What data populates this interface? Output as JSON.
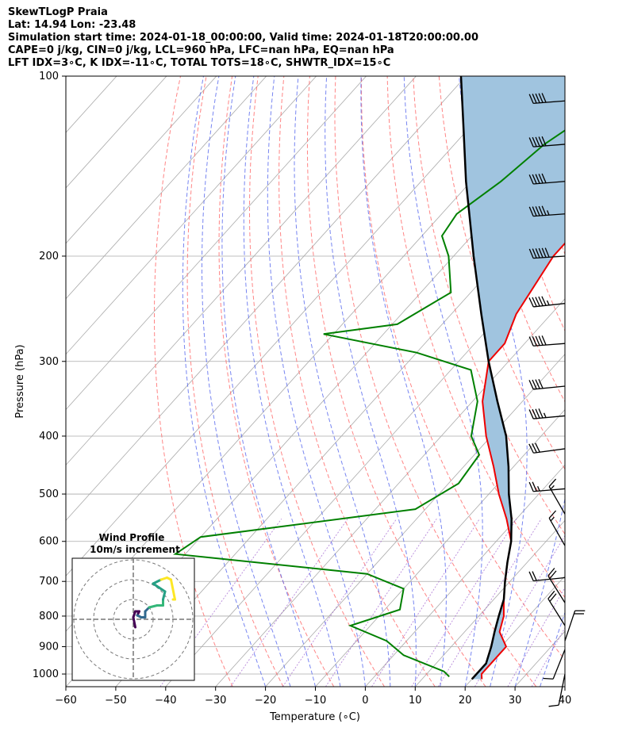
{
  "header": {
    "line1": "SkewTLogP Praia",
    "line2": "Lat: 14.94   Lon: -23.48",
    "line3": "Simulation start time: 2024-01-18_00:00:00, Valid time: 2024-01-18T20:00:00.00",
    "line4": "CAPE=0 j/kg, CIN=0 j/kg, LCL=960 hPa, LFC=nan hPa, EQ=nan hPa",
    "line5": "LFT IDX=3∘C, K IDX=-11∘C, TOTAL TOTS=18∘C, SHWTR_IDX=15∘C"
  },
  "chart_data": {
    "type": "line",
    "subtype": "skew-t log-p",
    "xlabel": "Temperature (∘C)",
    "ylabel": "Pressure (hPa)",
    "xlim": [
      -60,
      40
    ],
    "ylim": [
      1050,
      100
    ],
    "y_scale": "log",
    "grid": true,
    "x_ticks": [
      "−60",
      "−50",
      "−40",
      "−30",
      "−20",
      "−10",
      "0",
      "10",
      "20",
      "30",
      "40"
    ],
    "y_ticks": [
      "100",
      "200",
      "300",
      "400",
      "500",
      "600",
      "700",
      "800",
      "900",
      "1000"
    ],
    "colors": {
      "temperature": "#ee0000",
      "dewpoint": "#008000",
      "parcel": "#000000",
      "shade": "#a0c4df",
      "dry_adiabat": "#ff6666",
      "moist_adiabat": "#5566ee",
      "mixing_ratio": "#9955cc",
      "isotherm": "#aaaaaa",
      "hodo_colors": [
        "#440154",
        "#31688e",
        "#35b779",
        "#26a085",
        "#fde725"
      ]
    },
    "series": [
      {
        "key": "temperature",
        "points": [
          [
            100,
            -35
          ],
          [
            120,
            -35
          ],
          [
            150,
            -38
          ],
          [
            180,
            -40
          ],
          [
            200,
            -40
          ],
          [
            250,
            -37
          ],
          [
            280,
            -34
          ],
          [
            300,
            -34
          ],
          [
            350,
            -28
          ],
          [
            400,
            -21
          ],
          [
            450,
            -14
          ],
          [
            500,
            -8
          ],
          [
            550,
            -2
          ],
          [
            600,
            3
          ],
          [
            650,
            6
          ],
          [
            700,
            9
          ],
          [
            750,
            12
          ],
          [
            800,
            15
          ],
          [
            850,
            17
          ],
          [
            900,
            21
          ],
          [
            950,
            21
          ],
          [
            1000,
            21
          ],
          [
            1020,
            22
          ]
        ]
      },
      {
        "key": "dewpoint",
        "points": [
          [
            100,
            -54
          ],
          [
            130,
            -62
          ],
          [
            150,
            -64
          ],
          [
            170,
            -67
          ],
          [
            185,
            -66
          ],
          [
            200,
            -61
          ],
          [
            230,
            -54
          ],
          [
            260,
            -59
          ],
          [
            270,
            -72
          ],
          [
            290,
            -50
          ],
          [
            310,
            -36
          ],
          [
            350,
            -29
          ],
          [
            400,
            -24
          ],
          [
            430,
            -19
          ],
          [
            480,
            -18
          ],
          [
            530,
            -22
          ],
          [
            590,
            -60
          ],
          [
            630,
            -62
          ],
          [
            680,
            -20
          ],
          [
            720,
            -10
          ],
          [
            780,
            -7
          ],
          [
            830,
            -14
          ],
          [
            880,
            -4
          ],
          [
            930,
            2
          ],
          [
            990,
            13
          ],
          [
            1010,
            15
          ]
        ]
      },
      {
        "key": "parcel",
        "points": [
          [
            1020,
            20
          ],
          [
            1000,
            20
          ],
          [
            960,
            20
          ],
          [
            900,
            18
          ],
          [
            850,
            16
          ],
          [
            800,
            14
          ],
          [
            750,
            12
          ],
          [
            700,
            9
          ],
          [
            650,
            6
          ],
          [
            600,
            3
          ],
          [
            550,
            -1
          ],
          [
            500,
            -6
          ],
          [
            450,
            -11
          ],
          [
            400,
            -17
          ],
          [
            350,
            -25
          ],
          [
            300,
            -34
          ],
          [
            250,
            -44
          ],
          [
            200,
            -56
          ],
          [
            150,
            -71
          ],
          [
            120,
            -82
          ],
          [
            100,
            -91
          ]
        ]
      }
    ],
    "wind_barbs": [
      {
        "p": 110,
        "u": -25,
        "v": -2
      },
      {
        "p": 130,
        "u": -25,
        "v": -2
      },
      {
        "p": 150,
        "u": -25,
        "v": -2
      },
      {
        "p": 170,
        "u": -28,
        "v": -2
      },
      {
        "p": 200,
        "u": -30,
        "v": -2
      },
      {
        "p": 240,
        "u": -28,
        "v": -3
      },
      {
        "p": 280,
        "u": -26,
        "v": -2
      },
      {
        "p": 330,
        "u": -20,
        "v": -2
      },
      {
        "p": 370,
        "u": -22,
        "v": -2
      },
      {
        "p": 420,
        "u": -15,
        "v": -2
      },
      {
        "p": 490,
        "u": -12,
        "v": -1
      },
      {
        "p": 540,
        "u": -4,
        "v": 7
      },
      {
        "p": 610,
        "u": -4,
        "v": 7
      },
      {
        "p": 690,
        "u": -10,
        "v": -1
      },
      {
        "p": 760,
        "u": -5,
        "v": 8
      },
      {
        "p": 830,
        "u": -5,
        "v": 8
      },
      {
        "p": 880,
        "u": 3,
        "v": 9
      },
      {
        "p": 910,
        "u": -2,
        "v": -5
      },
      {
        "p": 1000,
        "u": -1,
        "v": -5
      }
    ],
    "hodograph": {
      "title": "Wind Profile",
      "subtitle": "10m/s increment",
      "points": [
        [
          1,
          -4
        ],
        [
          0,
          1
        ],
        [
          1,
          4
        ],
        [
          3,
          4
        ],
        [
          2,
          2
        ],
        [
          4,
          1
        ],
        [
          6,
          1
        ],
        [
          6,
          4
        ],
        [
          8,
          6
        ],
        [
          12,
          7
        ],
        [
          15,
          7
        ],
        [
          15,
          10
        ],
        [
          16,
          14
        ],
        [
          13,
          16
        ],
        [
          10,
          18
        ],
        [
          14,
          20
        ],
        [
          17,
          21
        ],
        [
          19,
          20
        ],
        [
          21,
          10
        ],
        [
          20,
          10
        ]
      ]
    }
  }
}
